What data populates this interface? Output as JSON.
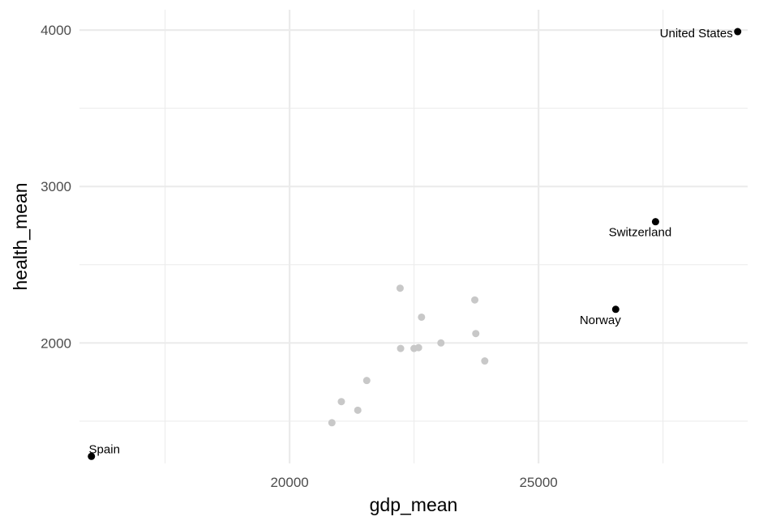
{
  "chart_data": {
    "type": "scatter",
    "xlabel": "gdp_mean",
    "ylabel": "health_mean",
    "xlim": [
      15780,
      29200
    ],
    "ylim": [
      1230,
      4130
    ],
    "x_ticks": [
      20000,
      25000
    ],
    "x_minor_ticks": [
      17500,
      22500,
      27500
    ],
    "y_ticks": [
      2000,
      3000,
      4000
    ],
    "y_minor_ticks": [
      1500,
      2500,
      3500
    ],
    "x_tick_labels": [
      "20000",
      "25000"
    ],
    "y_tick_labels": [
      "2000",
      "3000",
      "4000"
    ],
    "grid": true,
    "colors": {
      "highlight": "#000000",
      "background_points": "#c8c8c8",
      "grid": "#ebebeb"
    },
    "highlighted": [
      {
        "label": "United States",
        "x": 29000,
        "y": 3990
      },
      {
        "label": "Switzerland",
        "x": 27350,
        "y": 2775
      },
      {
        "label": "Norway",
        "x": 26550,
        "y": 2215
      },
      {
        "label": "Spain",
        "x": 16020,
        "y": 1275
      }
    ],
    "others": [
      {
        "x": 22220,
        "y": 2350
      },
      {
        "x": 23720,
        "y": 2275
      },
      {
        "x": 22650,
        "y": 2165
      },
      {
        "x": 23740,
        "y": 2060
      },
      {
        "x": 23040,
        "y": 2000
      },
      {
        "x": 22230,
        "y": 1965
      },
      {
        "x": 22500,
        "y": 1965
      },
      {
        "x": 22590,
        "y": 1970
      },
      {
        "x": 23920,
        "y": 1885
      },
      {
        "x": 21550,
        "y": 1760
      },
      {
        "x": 21040,
        "y": 1625
      },
      {
        "x": 21370,
        "y": 1570
      },
      {
        "x": 20850,
        "y": 1490
      }
    ]
  }
}
